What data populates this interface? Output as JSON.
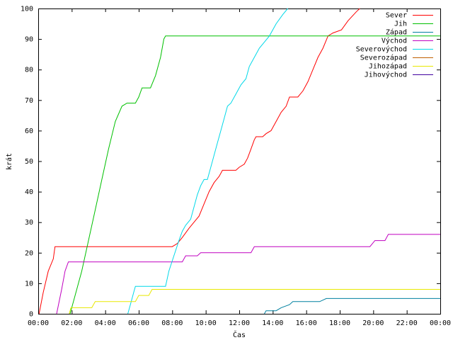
{
  "chart_data": {
    "type": "line",
    "title": "",
    "xlabel": "Čas",
    "ylabel": "krát",
    "xlim": [
      0,
      24
    ],
    "ylim": [
      0,
      100
    ],
    "xticks": [
      {
        "value": 0,
        "label": "00:00"
      },
      {
        "value": 2,
        "label": "02:00"
      },
      {
        "value": 4,
        "label": "04:00"
      },
      {
        "value": 6,
        "label": "06:00"
      },
      {
        "value": 8,
        "label": "08:00"
      },
      {
        "value": 10,
        "label": "10:00"
      },
      {
        "value": 12,
        "label": "12:00"
      },
      {
        "value": 14,
        "label": "14:00"
      },
      {
        "value": 16,
        "label": "16:00"
      },
      {
        "value": 18,
        "label": "18:00"
      },
      {
        "value": 20,
        "label": "20:00"
      },
      {
        "value": 22,
        "label": "22:00"
      },
      {
        "value": 24,
        "label": "00:00"
      }
    ],
    "yticks": [
      0,
      10,
      20,
      30,
      40,
      50,
      60,
      70,
      80,
      90,
      100
    ],
    "grid": false,
    "legend": "top-right",
    "series": [
      {
        "name": "Sever",
        "color": "#ff0000",
        "points": [
          [
            0.05,
            0
          ],
          [
            0.3,
            7
          ],
          [
            0.6,
            14
          ],
          [
            0.9,
            18
          ],
          [
            1.0,
            22
          ],
          [
            8.0,
            22
          ],
          [
            8.3,
            23
          ],
          [
            8.6,
            25
          ],
          [
            9.0,
            28
          ],
          [
            9.3,
            30
          ],
          [
            9.6,
            32
          ],
          [
            9.9,
            36
          ],
          [
            10.2,
            40
          ],
          [
            10.5,
            43
          ],
          [
            10.8,
            45
          ],
          [
            11.0,
            47
          ],
          [
            11.8,
            47
          ],
          [
            12.0,
            48
          ],
          [
            12.3,
            49
          ],
          [
            12.5,
            51
          ],
          [
            12.7,
            54
          ],
          [
            12.9,
            57
          ],
          [
            13.0,
            58
          ],
          [
            13.4,
            58
          ],
          [
            13.6,
            59
          ],
          [
            13.9,
            60
          ],
          [
            14.2,
            63
          ],
          [
            14.5,
            66
          ],
          [
            14.8,
            68
          ],
          [
            15.0,
            71
          ],
          [
            15.5,
            71
          ],
          [
            15.8,
            73
          ],
          [
            16.1,
            76
          ],
          [
            16.4,
            80
          ],
          [
            16.7,
            84
          ],
          [
            17.0,
            87
          ],
          [
            17.3,
            91
          ],
          [
            17.6,
            92
          ],
          [
            18.1,
            93
          ],
          [
            18.5,
            96
          ],
          [
            19.0,
            99
          ],
          [
            19.2,
            100
          ]
        ]
      },
      {
        "name": "Jih",
        "color": "#00c000",
        "points": [
          [
            1.9,
            0
          ],
          [
            2.2,
            6
          ],
          [
            2.6,
            14
          ],
          [
            3.0,
            24
          ],
          [
            3.4,
            34
          ],
          [
            3.8,
            44
          ],
          [
            4.2,
            54
          ],
          [
            4.6,
            63
          ],
          [
            5.0,
            68
          ],
          [
            5.3,
            69
          ],
          [
            5.8,
            69
          ],
          [
            6.0,
            71
          ],
          [
            6.2,
            74
          ],
          [
            6.7,
            74
          ],
          [
            7.0,
            78
          ],
          [
            7.3,
            84
          ],
          [
            7.5,
            90
          ],
          [
            7.6,
            91
          ],
          [
            24,
            91
          ]
        ]
      },
      {
        "name": "Západ",
        "color": "#0080a0",
        "points": [
          [
            13.5,
            0
          ],
          [
            13.6,
            1
          ],
          [
            14.2,
            1
          ],
          [
            14.5,
            2
          ],
          [
            15.0,
            3
          ],
          [
            15.2,
            4
          ],
          [
            16.8,
            4
          ],
          [
            17.2,
            5
          ],
          [
            24,
            5
          ]
        ]
      },
      {
        "name": "Východ",
        "color": "#c000c0",
        "points": [
          [
            1.1,
            0
          ],
          [
            1.4,
            8
          ],
          [
            1.6,
            14
          ],
          [
            1.8,
            17
          ],
          [
            8.6,
            17
          ],
          [
            8.8,
            19
          ],
          [
            9.5,
            19
          ],
          [
            9.7,
            20
          ],
          [
            12.7,
            20
          ],
          [
            12.9,
            22
          ],
          [
            19.8,
            22
          ],
          [
            20.1,
            24
          ],
          [
            20.7,
            24
          ],
          [
            20.9,
            26
          ],
          [
            24,
            26
          ]
        ]
      },
      {
        "name": "Severovýchod",
        "color": "#00d8e8",
        "points": [
          [
            5.35,
            0
          ],
          [
            5.5,
            3
          ],
          [
            5.7,
            7
          ],
          [
            5.8,
            9
          ],
          [
            7.6,
            9
          ],
          [
            7.8,
            14
          ],
          [
            8.1,
            19
          ],
          [
            8.4,
            24
          ],
          [
            8.6,
            27
          ],
          [
            8.8,
            29
          ],
          [
            9.1,
            31
          ],
          [
            9.3,
            35
          ],
          [
            9.5,
            39
          ],
          [
            9.7,
            42
          ],
          [
            9.9,
            44
          ],
          [
            10.1,
            44
          ],
          [
            10.3,
            48
          ],
          [
            10.5,
            52
          ],
          [
            10.7,
            56
          ],
          [
            10.9,
            60
          ],
          [
            11.1,
            64
          ],
          [
            11.3,
            68
          ],
          [
            11.5,
            69
          ],
          [
            11.8,
            72
          ],
          [
            12.1,
            75
          ],
          [
            12.4,
            77
          ],
          [
            12.6,
            81
          ],
          [
            12.9,
            84
          ],
          [
            13.2,
            87
          ],
          [
            13.5,
            89
          ],
          [
            13.8,
            91
          ],
          [
            14.2,
            95
          ],
          [
            14.6,
            98
          ],
          [
            14.9,
            100
          ]
        ]
      },
      {
        "name": "Severozápad",
        "color": "#c06000",
        "points": []
      },
      {
        "name": "Jihozápad",
        "color": "#e8e800",
        "points": [
          [
            1.85,
            0
          ],
          [
            1.95,
            2
          ],
          [
            3.2,
            2
          ],
          [
            3.4,
            4
          ],
          [
            5.8,
            4
          ],
          [
            6.0,
            6
          ],
          [
            6.6,
            6
          ],
          [
            6.8,
            8
          ],
          [
            24,
            8
          ]
        ]
      },
      {
        "name": "Jihovýchod",
        "color": "#4000a0",
        "points": []
      }
    ]
  }
}
